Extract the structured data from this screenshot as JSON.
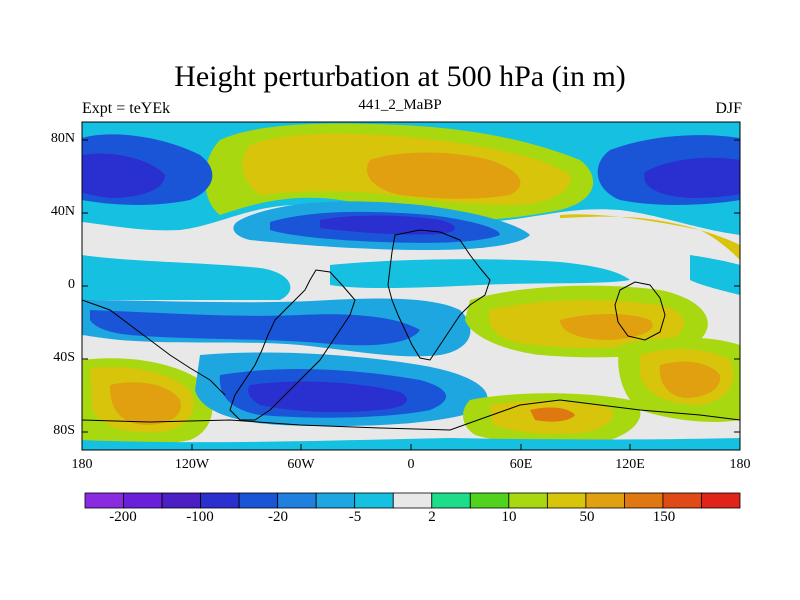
{
  "title": "Height perturbation at 500 hPa (in m)",
  "left_subtitle": "Expt = teYEk",
  "center_subtitle": "441_2_MaBP",
  "right_subtitle": "DJF",
  "lat_ticks": [
    "80N",
    "40N",
    "0",
    "40S",
    "80S"
  ],
  "lon_ticks": [
    "180",
    "120W",
    "60W",
    "0",
    "60E",
    "120E",
    "180"
  ],
  "colorbar": {
    "colors": [
      "#8a2be2",
      "#6a1fd8",
      "#4b1fc4",
      "#2a2fcf",
      "#1a55d8",
      "#1f80e0",
      "#1ea6e0",
      "#16c0e0",
      "#e8e8e8",
      "#1ddc8a",
      "#50d21e",
      "#a8d810",
      "#d8c40a",
      "#e0a010",
      "#e07812",
      "#e04a16",
      "#e0241a"
    ],
    "labels": [
      "-200",
      "-100",
      "-20",
      "-5",
      "2",
      "10",
      "50",
      "150"
    ]
  },
  "map_data": {
    "type": "filled-contour-map",
    "field": "500 hPa height perturbation",
    "units": "m",
    "lon_range": [
      -180,
      180
    ],
    "lat_range": [
      -90,
      90
    ]
  }
}
